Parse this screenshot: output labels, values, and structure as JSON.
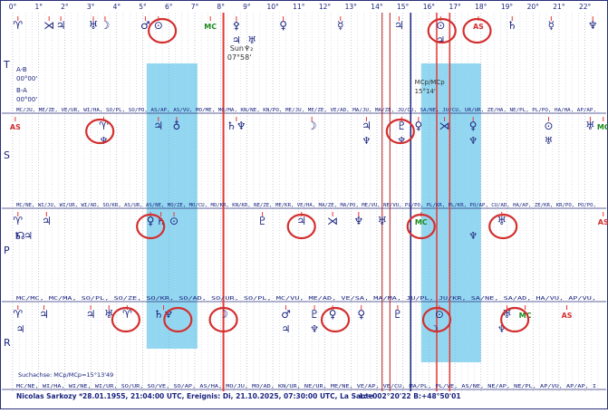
{
  "chart_data": {
    "type": "graphic-ephemeris",
    "x_unit": "degrees",
    "xlim": [
      0,
      22.5
    ],
    "x_ticks": [
      "0°",
      "1°",
      "2°",
      "3°",
      "4°",
      "5°",
      "6°",
      "7°",
      "8°",
      "9°",
      "10°",
      "11°",
      "12°",
      "13°",
      "14°",
      "15°",
      "16°",
      "17°",
      "18°",
      "19°",
      "20°",
      "21°",
      "22°"
    ],
    "bands": [
      {
        "id": "T",
        "label": "T"
      },
      {
        "id": "S",
        "label": "S"
      },
      {
        "id": "P",
        "label": "P"
      },
      {
        "id": "R",
        "label": "R"
      }
    ],
    "row_symbols": {
      "T": [
        {
          "x": 0.2,
          "glyph": "♈",
          "color": "#1a237e"
        },
        {
          "x": 1.4,
          "glyph": "⋊",
          "color": "#1a237e"
        },
        {
          "x": 1.85,
          "glyph": "♃",
          "color": "#1a237e"
        },
        {
          "x": 3.1,
          "glyph": "♅",
          "color": "#1a237e"
        },
        {
          "x": 3.55,
          "glyph": "☽",
          "color": "#1a237e"
        },
        {
          "x": 5.1,
          "glyph": "♂",
          "color": "#1a237e"
        },
        {
          "x": 5.6,
          "glyph": "⊙",
          "color": "#1a237e"
        },
        {
          "x": 7.6,
          "glyph": "MC",
          "color": "#1b8a1b"
        },
        {
          "x": 8.6,
          "glyph": "⚴",
          "color": "#1a237e"
        },
        {
          "x": 10.4,
          "glyph": "♀",
          "color": "#1a237e"
        },
        {
          "x": 12.6,
          "glyph": "☿",
          "color": "#1a237e"
        },
        {
          "x": 14.85,
          "glyph": "♃",
          "color": "#1a237e"
        },
        {
          "x": 16.45,
          "glyph": "⊙",
          "color": "#1a237e"
        },
        {
          "x": 17.9,
          "glyph": "AS",
          "color": "#d32f2f"
        },
        {
          "x": 19.2,
          "glyph": "♄",
          "color": "#1a237e"
        },
        {
          "x": 20.7,
          "glyph": "☿",
          "color": "#1a237e"
        },
        {
          "x": 22.3,
          "glyph": "♆",
          "color": "#1a237e"
        }
      ],
      "S": [
        {
          "x": 0.1,
          "glyph": "AS",
          "color": "#d32f2f"
        },
        {
          "x": 3.5,
          "glyph": "♈",
          "color": "#1a237e"
        },
        {
          "x": 5.6,
          "glyph": "♃",
          "color": "#1a237e"
        },
        {
          "x": 6.3,
          "glyph": "♁",
          "color": "#1a237e"
        },
        {
          "x": 8.6,
          "glyph": "♄♆",
          "color": "#1a237e"
        },
        {
          "x": 11.5,
          "glyph": "☽",
          "color": "#1a237e"
        },
        {
          "x": 13.6,
          "glyph": "♃",
          "color": "#1a237e"
        },
        {
          "x": 14.95,
          "glyph": "♇",
          "color": "#1a237e"
        },
        {
          "x": 15.6,
          "glyph": "♀",
          "color": "#1a237e"
        },
        {
          "x": 16.6,
          "glyph": "⋊",
          "color": "#1a237e"
        },
        {
          "x": 17.7,
          "glyph": "♀",
          "color": "#1a237e"
        },
        {
          "x": 20.6,
          "glyph": "⊙",
          "color": "#1a237e"
        },
        {
          "x": 22.2,
          "glyph": "♅",
          "color": "#1a237e"
        },
        {
          "x": 22.7,
          "glyph": "MC",
          "color": "#1b8a1b"
        }
      ],
      "P": [
        {
          "x": 0.2,
          "glyph": "♈",
          "color": "#1a237e"
        },
        {
          "x": 1.3,
          "glyph": "♃",
          "color": "#1a237e"
        },
        {
          "x": 5.3,
          "glyph": "♀",
          "color": "#1a237e"
        },
        {
          "x": 5.7,
          "glyph": "♄",
          "color": "#1a237e"
        },
        {
          "x": 6.2,
          "glyph": "⊙",
          "color": "#1a237e"
        },
        {
          "x": 9.6,
          "glyph": "♇",
          "color": "#1a237e"
        },
        {
          "x": 11.1,
          "glyph": "♃",
          "color": "#1a237e"
        },
        {
          "x": 12.3,
          "glyph": "⋊",
          "color": "#1a237e"
        },
        {
          "x": 13.3,
          "glyph": "♆",
          "color": "#1a237e"
        },
        {
          "x": 14.2,
          "glyph": "♅",
          "color": "#1a237e"
        },
        {
          "x": 15.7,
          "glyph": "MC",
          "color": "#1b8a1b"
        },
        {
          "x": 18.8,
          "glyph": "♅",
          "color": "#1a237e"
        },
        {
          "x": 22.7,
          "glyph": "AS",
          "color": "#d32f2f"
        }
      ],
      "R": [
        {
          "x": 0.2,
          "glyph": "♈",
          "color": "#1a237e"
        },
        {
          "x": 1.2,
          "glyph": "♃",
          "color": "#1a237e"
        },
        {
          "x": 3.0,
          "glyph": "♃",
          "color": "#1a237e"
        },
        {
          "x": 3.7,
          "glyph": "♅",
          "color": "#1a237e"
        },
        {
          "x": 4.4,
          "glyph": "♈",
          "color": "#1a237e"
        },
        {
          "x": 5.8,
          "glyph": "♄♆",
          "color": "#1a237e"
        },
        {
          "x": 8.1,
          "glyph": "☽",
          "color": "#1a237e"
        },
        {
          "x": 10.5,
          "glyph": "♂",
          "color": "#1a237e"
        },
        {
          "x": 11.6,
          "glyph": "♇",
          "color": "#1a237e"
        },
        {
          "x": 12.3,
          "glyph": "♀",
          "color": "#1a237e"
        },
        {
          "x": 13.4,
          "glyph": "♀",
          "color": "#1a237e"
        },
        {
          "x": 14.8,
          "glyph": "♇",
          "color": "#1a237e"
        },
        {
          "x": 16.4,
          "glyph": "⊙",
          "color": "#1a237e"
        },
        {
          "x": 19.0,
          "glyph": "♅",
          "color": "#1a237e"
        },
        {
          "x": 19.7,
          "glyph": "MC",
          "color": "#1b8a1b"
        },
        {
          "x": 21.3,
          "glyph": "AS",
          "color": "#d32f2f"
        }
      ]
    },
    "secondary_symbols": [
      {
        "x": 8.6,
        "row": "T",
        "glyph": "♃"
      },
      {
        "x": 9.2,
        "row": "T",
        "glyph": "♅"
      },
      {
        "x": 16.45,
        "row": "T",
        "glyph": "♃"
      },
      {
        "x": 3.5,
        "row": "S",
        "glyph": "♆"
      },
      {
        "x": 13.6,
        "row": "S",
        "glyph": "♆"
      },
      {
        "x": 14.95,
        "row": "S",
        "glyph": "♆"
      },
      {
        "x": 17.7,
        "row": "S",
        "glyph": "♆"
      },
      {
        "x": 20.6,
        "row": "S",
        "glyph": "♅"
      },
      {
        "x": 0.6,
        "row": "P",
        "glyph": "♃"
      },
      {
        "x": 0.2,
        "row": "P",
        "glyph": "♄"
      },
      {
        "x": 0.3,
        "row": "P",
        "glyph": "☊"
      },
      {
        "x": 17.7,
        "row": "P",
        "glyph": "♆"
      },
      {
        "x": 0.3,
        "row": "R",
        "glyph": "♃"
      },
      {
        "x": 10.5,
        "row": "R",
        "glyph": "♃"
      },
      {
        "x": 11.6,
        "row": "R",
        "glyph": "♆"
      },
      {
        "x": 16.2,
        "row": "R",
        "glyph": "☽"
      },
      {
        "x": 18.8,
        "row": "R",
        "glyph": "♆"
      }
    ],
    "vertical_lines": [
      {
        "x": 8.1,
        "color": "#e53935",
        "width": 2
      },
      {
        "x": 15.3,
        "color": "#1a237e",
        "width": 1.5
      },
      {
        "x": 16.3,
        "color": "#e53935",
        "width": 1.5
      },
      {
        "x": 16.8,
        "color": "#e53935",
        "width": 1.5
      },
      {
        "x": 14.2,
        "color": "#b71c1c",
        "width": 1
      },
      {
        "x": 14.5,
        "color": "#b71c1c",
        "width": 1
      }
    ],
    "highlight_bands": [
      {
        "x_start": 5.15,
        "x_end": 7.1,
        "color": "#7fd0ee"
      },
      {
        "x_start": 15.7,
        "x_end": 18.0,
        "color": "#7fd0ee"
      }
    ],
    "circled_items": [
      {
        "x": 5.75,
        "row": "T"
      },
      {
        "x": 16.5,
        "row": "T"
      },
      {
        "x": 17.85,
        "row": "T"
      },
      {
        "x": 3.35,
        "row": "S"
      },
      {
        "x": 14.9,
        "row": "S"
      },
      {
        "x": 5.3,
        "row": "P"
      },
      {
        "x": 11.1,
        "row": "P"
      },
      {
        "x": 15.7,
        "row": "P"
      },
      {
        "x": 18.85,
        "row": "P"
      },
      {
        "x": 4.35,
        "row": "R"
      },
      {
        "x": 6.35,
        "row": "R"
      },
      {
        "x": 8.1,
        "row": "R"
      },
      {
        "x": 12.4,
        "row": "R"
      },
      {
        "x": 16.3,
        "row": "R"
      },
      {
        "x": 19.3,
        "row": "R"
      }
    ],
    "midpoint_rows": [
      "MC/JU, ME/ZE, VE/UR, WI/HA, SO/PL, SO/PO, AS/AP, AS/VU, MO/ME, MO/MA, KN/NE, KN/PO, ME/JU, ME/ZE, VE/AD, MA/JU, MA/ZE, JU/CU, SA/NE, JU/CU, UR/UR, ZE/HA, NE/PL, PL/PO, HA/HA, AP/AP,",
      "MC/NE, WI/JU, WI/UR, WI/AD, SO/KR, AS/UR, AS/NE, MO/ZE, MO/CU, MO/KR, KN/KR, NE/ZE, ME/KR, VE/HA, MA/ZE, MA/PO, ME/VU, NE/VU, PL/PO, PL/KR, PL/KR, PO/AP, CU/AD, HA/AP, ZE/KR, KR/PO, PO/PO,",
      "MC/MC, MC/MA, SO/PL, SO/ZE, SO/KR, SO/AD, SO/UR, SO/PL, MC/VU, ME/AD, VE/SA, MA/MA, JU/PL, JU/KR, SA/NE, SA/AD, HA/VU, AP/VU,",
      "MC/NE, WI/HA, WI/NE, WI/UR, SO/UR, SO/VE, SO/AP, AS/HA, MO/JU, MO/AD, KN/UR, NE/UR, ME/NE, VE/AP, VE/CU, MA/PL, PL/VE, AS/NE, NE/AP, NE/PL, AP/VU, AP/AP, I"
    ],
    "annotations": {
      "sun_label": "Sun♆₂",
      "sun_degree": "07°58'",
      "ab_label": "A-B",
      "ab_value": "00°00'",
      "ba_label": "B-A",
      "ba_value": "00°00'",
      "mcp_label": "MCp/MCp",
      "mcp_value": "15°14'",
      "axis_note": "Suchachse: MCp/MCp=15°13'49"
    }
  },
  "footer": {
    "chart_info": "Nicolas Sarkozy  *28.01.1955, 21:04:00 UTC, Ereignis: Di, 21.10.2025, 07:30:00 UTC, La Sante",
    "coords": "L:+002°20'22 B:+48°50'01"
  },
  "colors": {
    "ink": "#1a237e",
    "red": "#e53935",
    "green": "#1b8a1b",
    "band": "#7fd0ee",
    "grid": "#c8ccd8"
  }
}
